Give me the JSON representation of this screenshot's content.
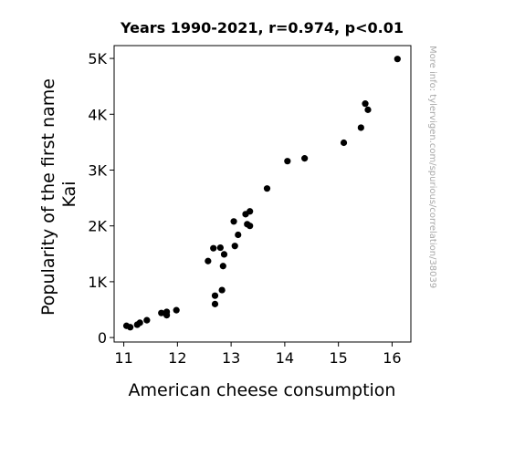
{
  "chart_data": {
    "type": "scatter",
    "title": "Years 1990-2021, r=0.974, p<0.01",
    "xlabel": "American cheese consumption",
    "ylabel_lines": [
      "Popularity of the first name",
      "Kai"
    ],
    "side_note": "More info: tylervigen.com/spurious/correlation/38039",
    "xlim": [
      10.82,
      16.35
    ],
    "ylim": [
      -80,
      5230
    ],
    "x_ticks": [
      {
        "value": 11,
        "label": "11"
      },
      {
        "value": 12,
        "label": "12"
      },
      {
        "value": 13,
        "label": "13"
      },
      {
        "value": 14,
        "label": "14"
      },
      {
        "value": 15,
        "label": "15"
      },
      {
        "value": 16,
        "label": "16"
      }
    ],
    "y_ticks": [
      {
        "value": 0,
        "label": "0"
      },
      {
        "value": 1000,
        "label": "1K"
      },
      {
        "value": 2000,
        "label": "2K"
      },
      {
        "value": 3000,
        "label": "3K"
      },
      {
        "value": 4000,
        "label": "4K"
      },
      {
        "value": 5000,
        "label": "5K"
      }
    ],
    "grid": false,
    "point_color": "#000000",
    "points": [
      {
        "x": 11.05,
        "y": 210
      },
      {
        "x": 11.12,
        "y": 185
      },
      {
        "x": 11.25,
        "y": 230
      },
      {
        "x": 11.3,
        "y": 265
      },
      {
        "x": 11.43,
        "y": 310
      },
      {
        "x": 11.7,
        "y": 440
      },
      {
        "x": 11.8,
        "y": 460
      },
      {
        "x": 11.8,
        "y": 400
      },
      {
        "x": 11.98,
        "y": 490
      },
      {
        "x": 12.57,
        "y": 1370
      },
      {
        "x": 12.67,
        "y": 1600
      },
      {
        "x": 12.7,
        "y": 750
      },
      {
        "x": 12.7,
        "y": 600
      },
      {
        "x": 12.8,
        "y": 1610
      },
      {
        "x": 12.83,
        "y": 850
      },
      {
        "x": 12.85,
        "y": 1280
      },
      {
        "x": 12.87,
        "y": 1490
      },
      {
        "x": 13.05,
        "y": 2080
      },
      {
        "x": 13.07,
        "y": 1640
      },
      {
        "x": 13.13,
        "y": 1840
      },
      {
        "x": 13.27,
        "y": 2210
      },
      {
        "x": 13.3,
        "y": 2030
      },
      {
        "x": 13.35,
        "y": 2260
      },
      {
        "x": 13.35,
        "y": 2000
      },
      {
        "x": 13.67,
        "y": 2670
      },
      {
        "x": 14.05,
        "y": 3160
      },
      {
        "x": 14.37,
        "y": 3210
      },
      {
        "x": 15.1,
        "y": 3490
      },
      {
        "x": 15.42,
        "y": 3760
      },
      {
        "x": 15.5,
        "y": 4190
      },
      {
        "x": 15.55,
        "y": 4080
      },
      {
        "x": 16.1,
        "y": 4990
      }
    ]
  }
}
